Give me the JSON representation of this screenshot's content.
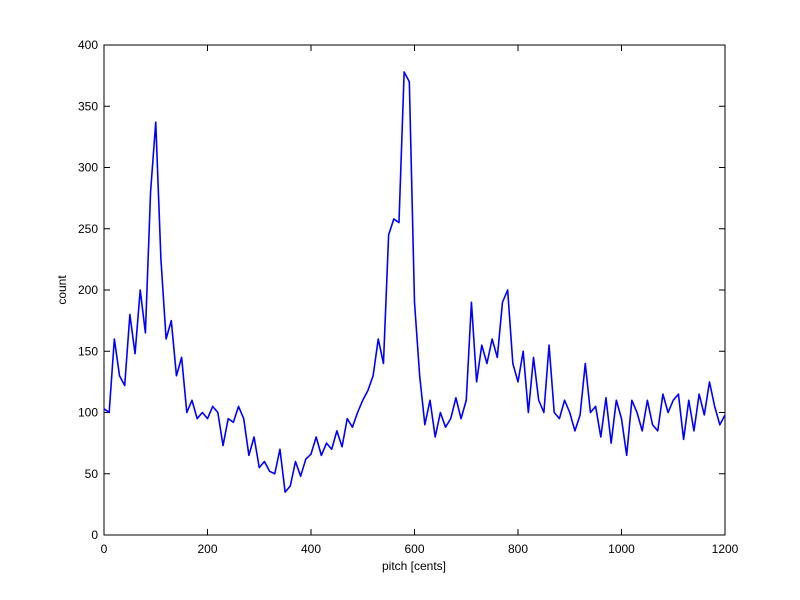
{
  "chart_data": {
    "type": "line",
    "xlabel": "pitch [cents]",
    "ylabel": "count",
    "xlim": [
      0,
      1200
    ],
    "ylim": [
      0,
      400
    ],
    "xticks": [
      0,
      200,
      400,
      600,
      800,
      1000,
      1200
    ],
    "yticks": [
      0,
      50,
      100,
      150,
      200,
      250,
      300,
      350,
      400
    ],
    "series": [
      {
        "color": "#0000ff",
        "x": [
          0,
          10,
          20,
          30,
          40,
          50,
          60,
          70,
          80,
          90,
          100,
          110,
          120,
          130,
          140,
          150,
          160,
          170,
          180,
          190,
          200,
          210,
          220,
          230,
          240,
          250,
          260,
          270,
          280,
          290,
          300,
          310,
          320,
          330,
          340,
          350,
          360,
          370,
          380,
          390,
          400,
          410,
          420,
          430,
          440,
          450,
          460,
          470,
          480,
          490,
          500,
          510,
          520,
          530,
          540,
          550,
          560,
          570,
          580,
          590,
          600,
          610,
          620,
          630,
          640,
          650,
          660,
          670,
          680,
          690,
          700,
          710,
          720,
          730,
          740,
          750,
          760,
          770,
          780,
          790,
          800,
          810,
          820,
          830,
          840,
          850,
          860,
          870,
          880,
          890,
          900,
          910,
          920,
          930,
          940,
          950,
          960,
          970,
          980,
          990,
          1000,
          1010,
          1020,
          1030,
          1040,
          1050,
          1060,
          1070,
          1080,
          1090,
          1100,
          1110,
          1120,
          1130,
          1140,
          1150,
          1160,
          1170,
          1180,
          1190,
          1200
        ],
        "values": [
          103,
          100,
          160,
          130,
          122,
          180,
          148,
          200,
          165,
          280,
          337,
          225,
          160,
          175,
          130,
          145,
          100,
          110,
          95,
          100,
          95,
          105,
          100,
          73,
          95,
          92,
          105,
          95,
          65,
          80,
          55,
          60,
          52,
          50,
          70,
          35,
          40,
          60,
          48,
          62,
          66,
          80,
          65,
          75,
          70,
          85,
          72,
          95,
          88,
          100,
          110,
          118,
          130,
          160,
          140,
          245,
          258,
          255,
          378,
          370,
          190,
          130,
          90,
          110,
          80,
          100,
          88,
          95,
          112,
          95,
          110,
          190,
          125,
          155,
          140,
          160,
          145,
          190,
          200,
          140,
          125,
          150,
          100,
          145,
          110,
          100,
          155,
          100,
          95,
          110,
          100,
          85,
          98,
          140,
          100,
          105,
          80,
          112,
          75,
          110,
          95,
          65,
          110,
          100,
          85,
          110,
          90,
          85,
          115,
          100,
          110,
          115,
          78,
          110,
          85,
          115,
          98,
          125,
          105,
          90,
          98
        ]
      }
    ]
  }
}
